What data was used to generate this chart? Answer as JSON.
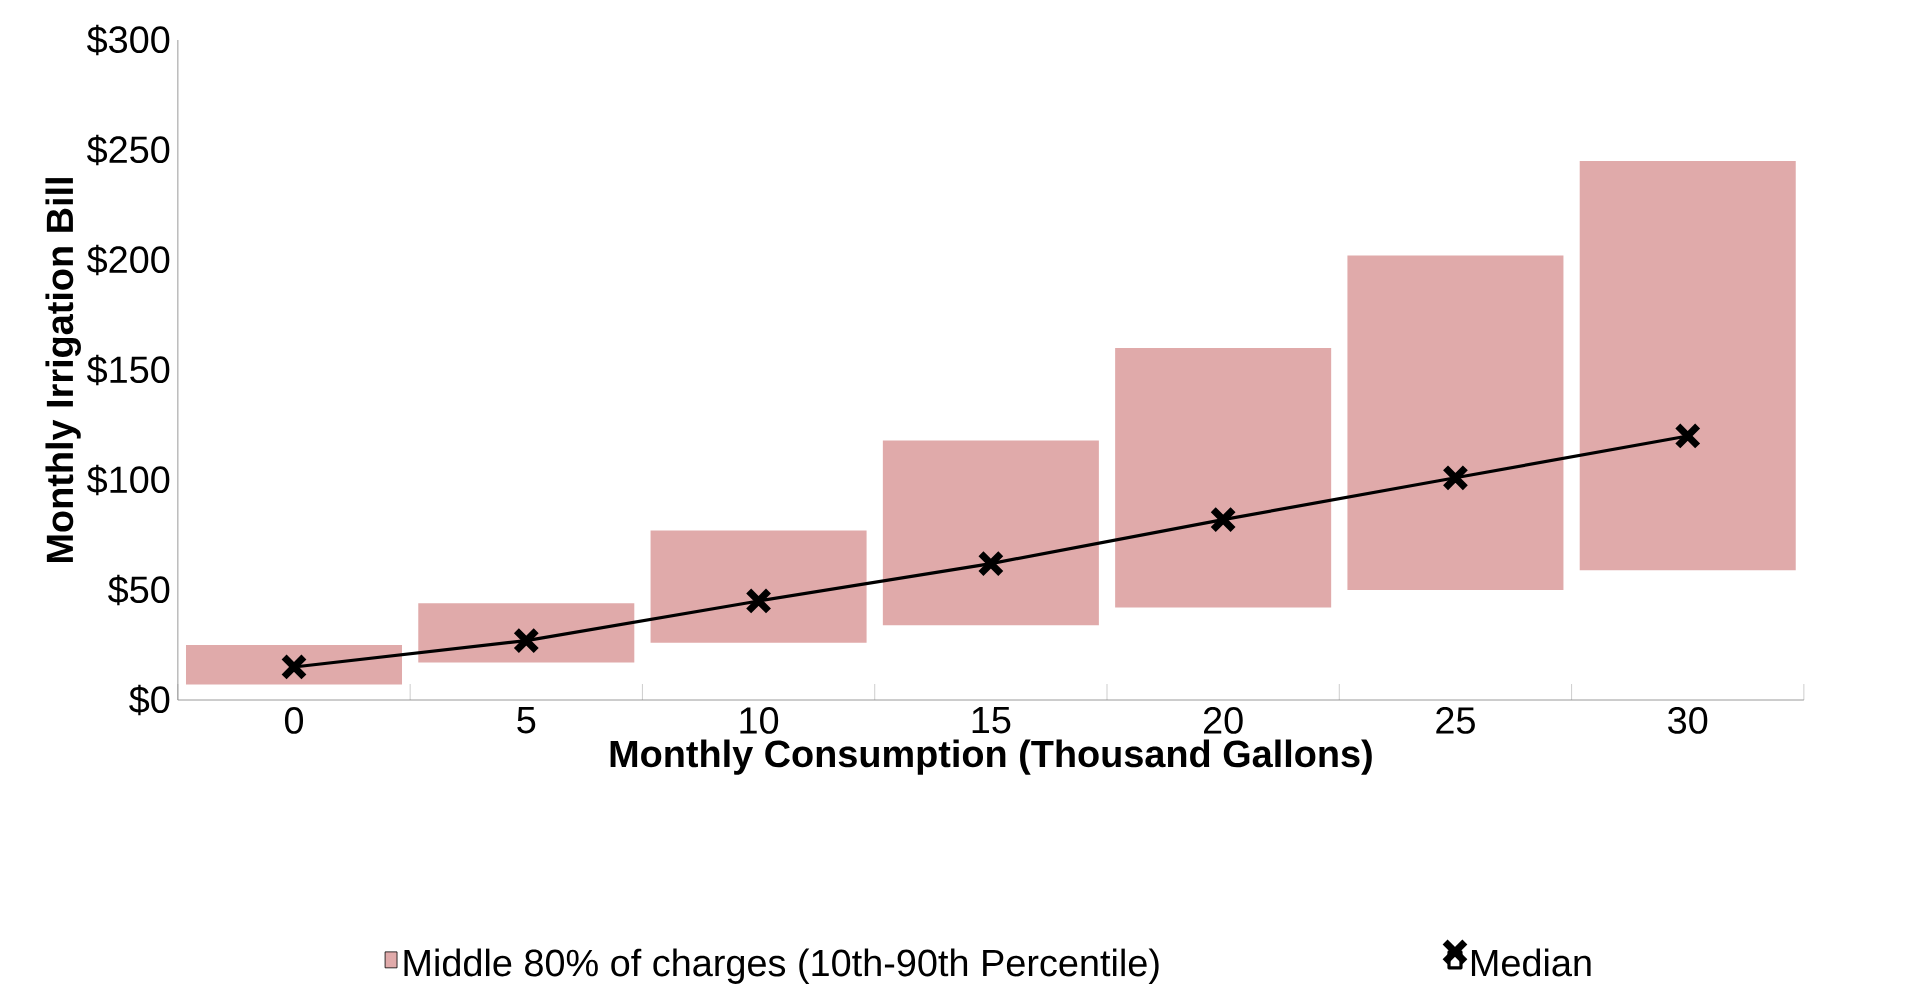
{
  "chart_data": {
    "type": "bar",
    "xlabel": "Monthly Consumption (Thousand Gallons)",
    "ylabel": "Monthly Irrigation Bill",
    "categories": [
      "0",
      "5",
      "10",
      "15",
      "20",
      "25",
      "30"
    ],
    "series": [
      {
        "name": "Middle 80% of charges (10th-90th Percentile)",
        "color": "#e0aaaa",
        "base": [
          7,
          17,
          26,
          34,
          42,
          50,
          59
        ],
        "values": [
          18,
          27,
          51,
          84,
          118,
          152,
          186
        ]
      },
      {
        "name": "Median",
        "type": "line",
        "color": "#000000",
        "marker": "cross",
        "values": [
          15,
          27,
          45,
          62,
          82,
          101,
          120
        ]
      }
    ],
    "ylim": [
      0,
      300
    ],
    "yticks": [
      {
        "value": 0,
        "label": "$0"
      },
      {
        "value": 50,
        "label": "$50"
      },
      {
        "value": 100,
        "label": "$100"
      },
      {
        "value": 150,
        "label": "$150"
      },
      {
        "value": 200,
        "label": "$200"
      },
      {
        "value": 250,
        "label": "$250"
      },
      {
        "value": 300,
        "label": "$300"
      }
    ],
    "legend": "bottom"
  }
}
